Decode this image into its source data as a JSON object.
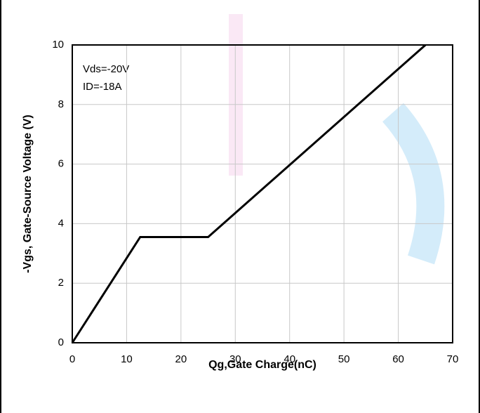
{
  "chart_data": {
    "type": "line",
    "x_label": "Qg,Gate Charge(nC)",
    "y_label": "-Vgs, Gate-Source Voltage (V)",
    "annotations": [
      "Vds=-20V",
      "ID=-18A"
    ],
    "x": [
      0,
      12.5,
      25,
      65
    ],
    "series": [
      {
        "color": "#000000",
        "values": [
          0,
          3.55,
          3.55,
          10
        ]
      }
    ],
    "xlim": [
      0,
      70
    ],
    "xticks": [
      0,
      10,
      20,
      30,
      40,
      50,
      60,
      70
    ],
    "ylim": [
      0,
      10
    ],
    "yticks": [
      0,
      2,
      4,
      6,
      8,
      10
    ],
    "grid": true
  }
}
